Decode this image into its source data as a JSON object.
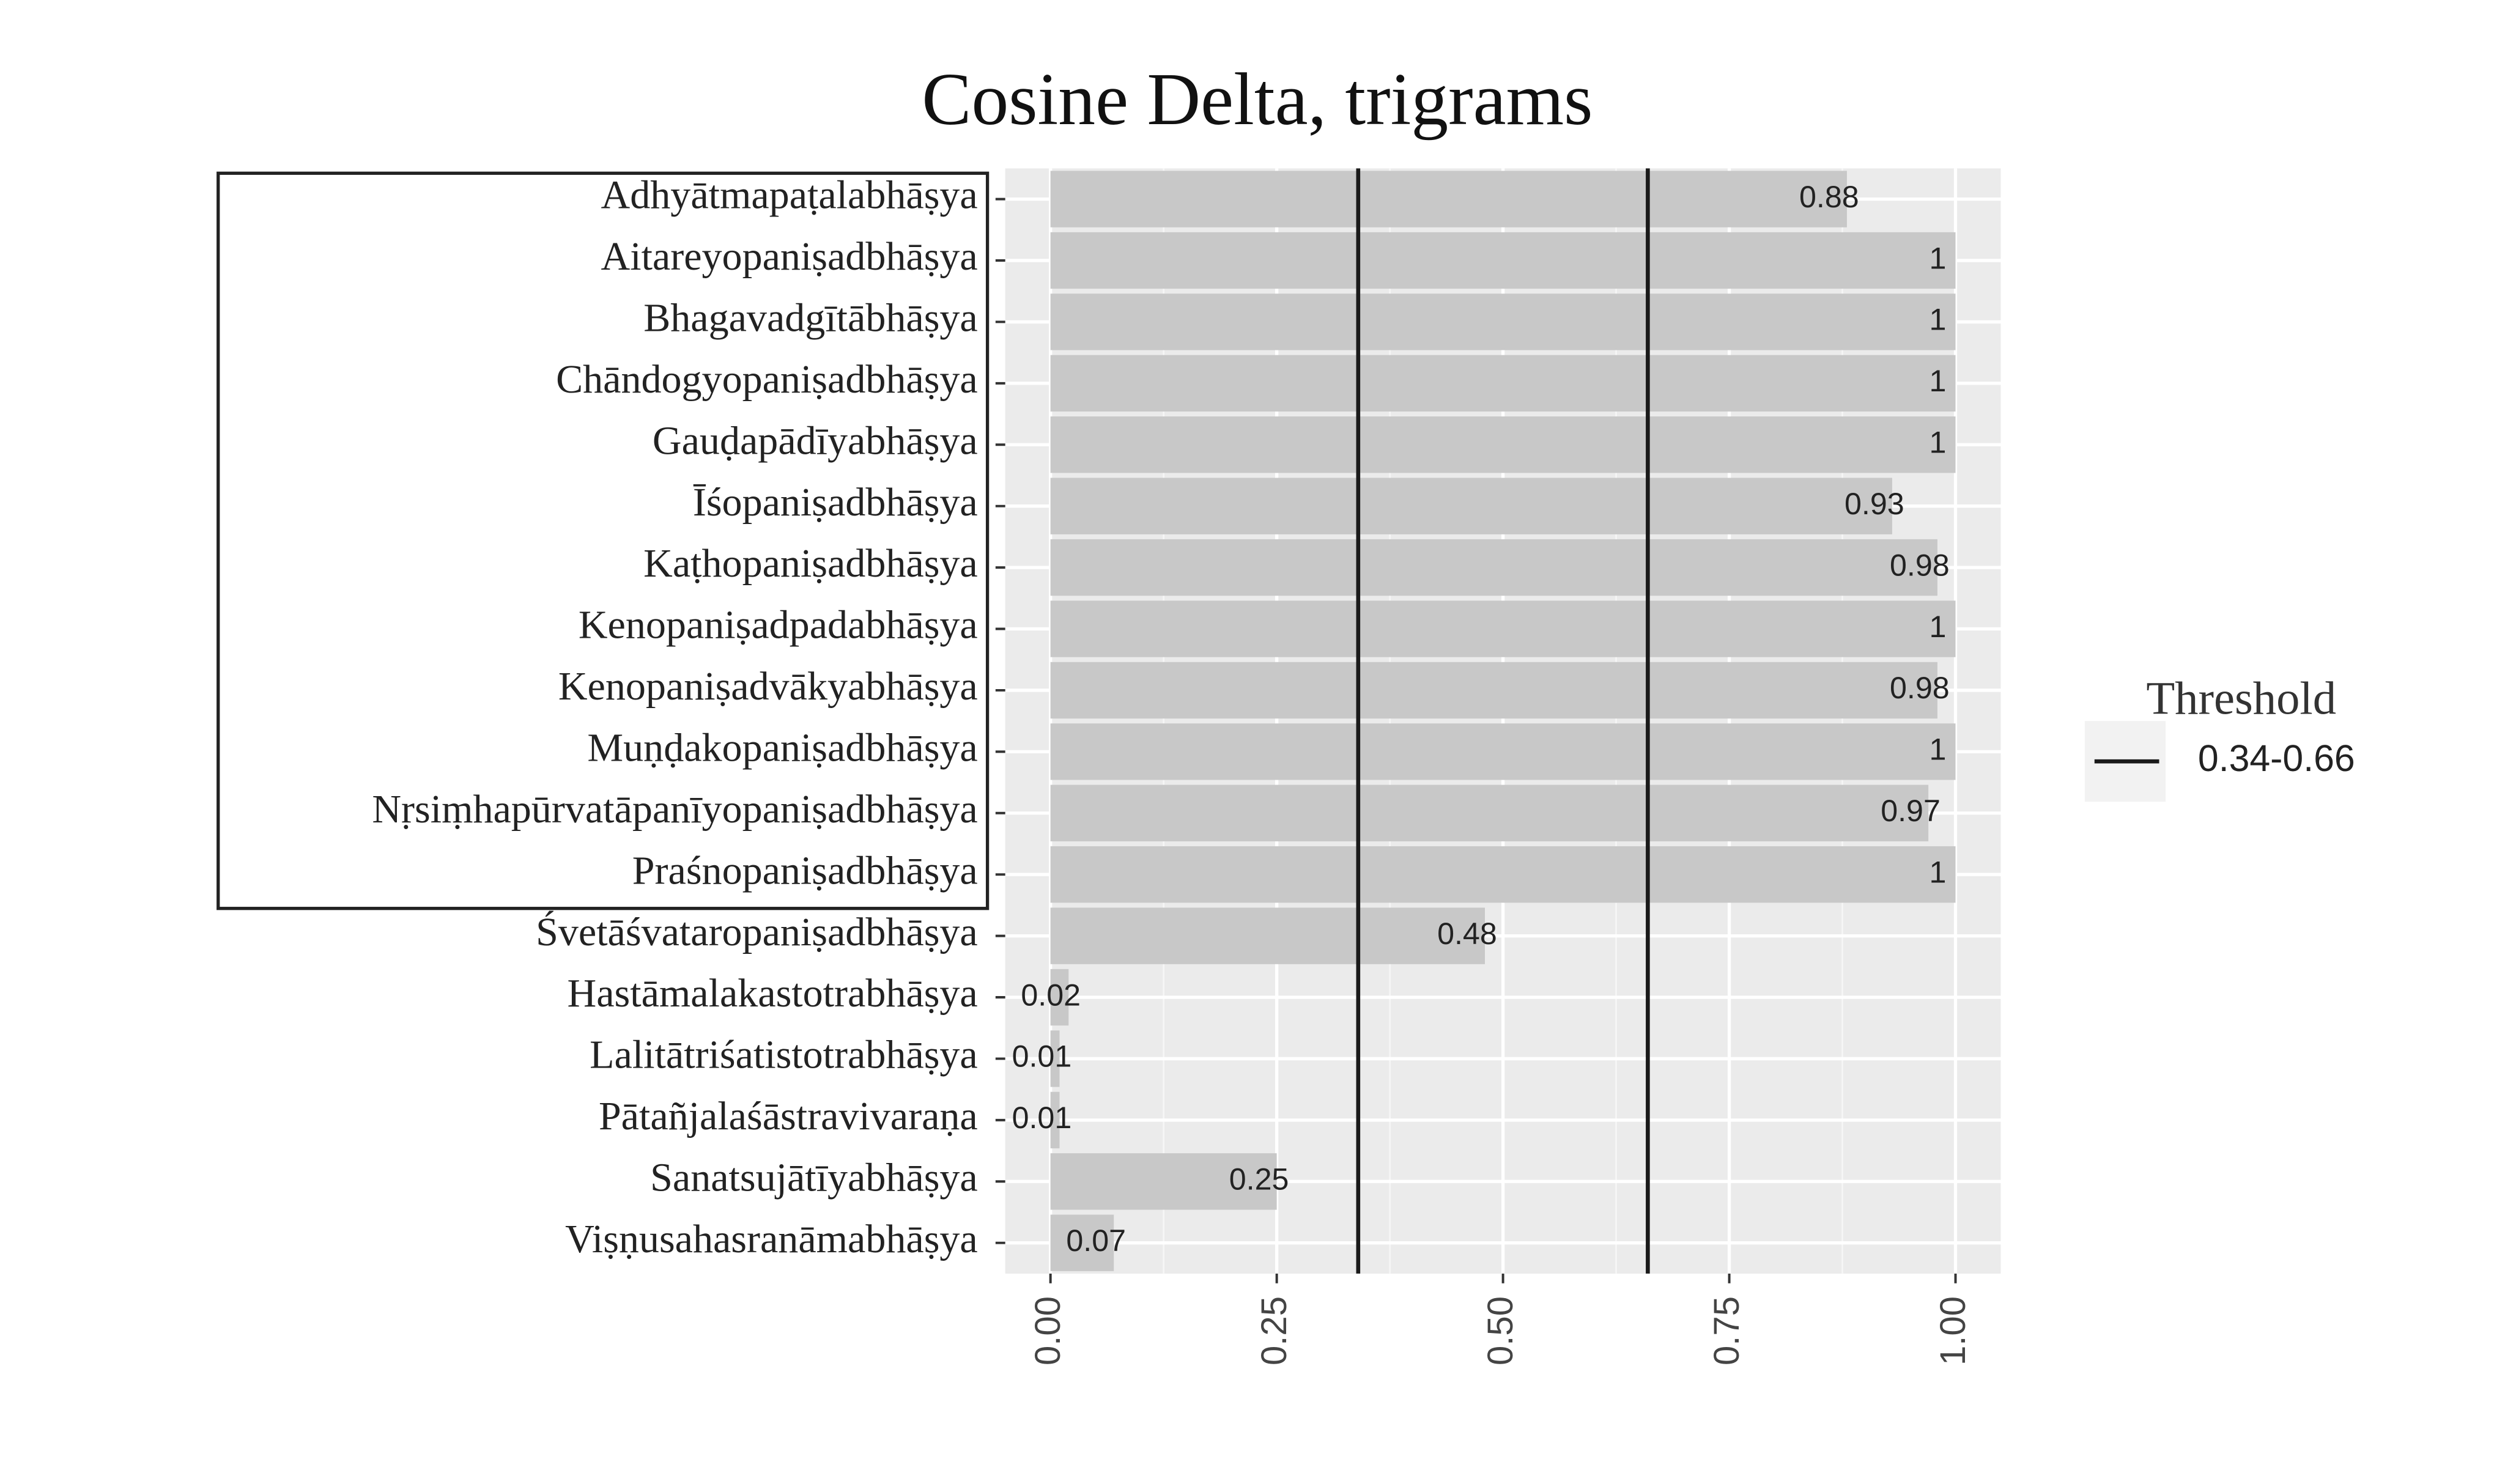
{
  "chart_data": {
    "type": "barh",
    "title": "Cosine Delta, trigrams",
    "categories": [
      "Adhyātmapaṭalabhāṣya",
      "Aitareyopaniṣadbhāṣya",
      "Bhagavadgītābhāṣya",
      "Chāndogyopaniṣadbhāṣya",
      "Gauḍapādīyabhāṣya",
      "Īśopaniṣadbhāṣya",
      "Kaṭhopaniṣadbhāṣya",
      "Kenopaniṣadpadabhāṣya",
      "Kenopaniṣadvākyabhāṣya",
      "Muṇḍakopaniṣadbhāṣya",
      "Nṛsiṃhapūrvatāpanīyopaniṣadbhāṣya",
      "Praśnopaniṣadbhāṣya",
      "Śvetāśvataropaniṣadbhāṣya",
      "Hastāmalakastotrabhāṣya",
      "Lalitātriśatistotrabhāṣya",
      "Pātañjalaśāstravivaraṇa",
      "Sanatsujātīyabhāṣya",
      "Viṣṇusahasranāmabhāṣya"
    ],
    "values": [
      0.88,
      1,
      1,
      1,
      1,
      0.93,
      0.98,
      1,
      0.98,
      1,
      0.97,
      1,
      0.48,
      0.02,
      0.01,
      0.01,
      0.25,
      0.07
    ],
    "color": "#c8c8c8",
    "xlim": [
      -0.05,
      1.05
    ],
    "xticks": [
      {
        "value": 0,
        "label": "0.00"
      },
      {
        "value": 0.25,
        "label": "0.25"
      },
      {
        "value": 0.5,
        "label": "0.50"
      },
      {
        "value": 0.75,
        "label": "0.75"
      },
      {
        "value": 1,
        "label": "1.00"
      }
    ],
    "grid": true,
    "threshold": {
      "legend_title": "Threshold",
      "name": "0.34-0.66",
      "values": [
        0.34,
        0.66
      ],
      "color": "#1a1a1a"
    },
    "legend": "right"
  }
}
